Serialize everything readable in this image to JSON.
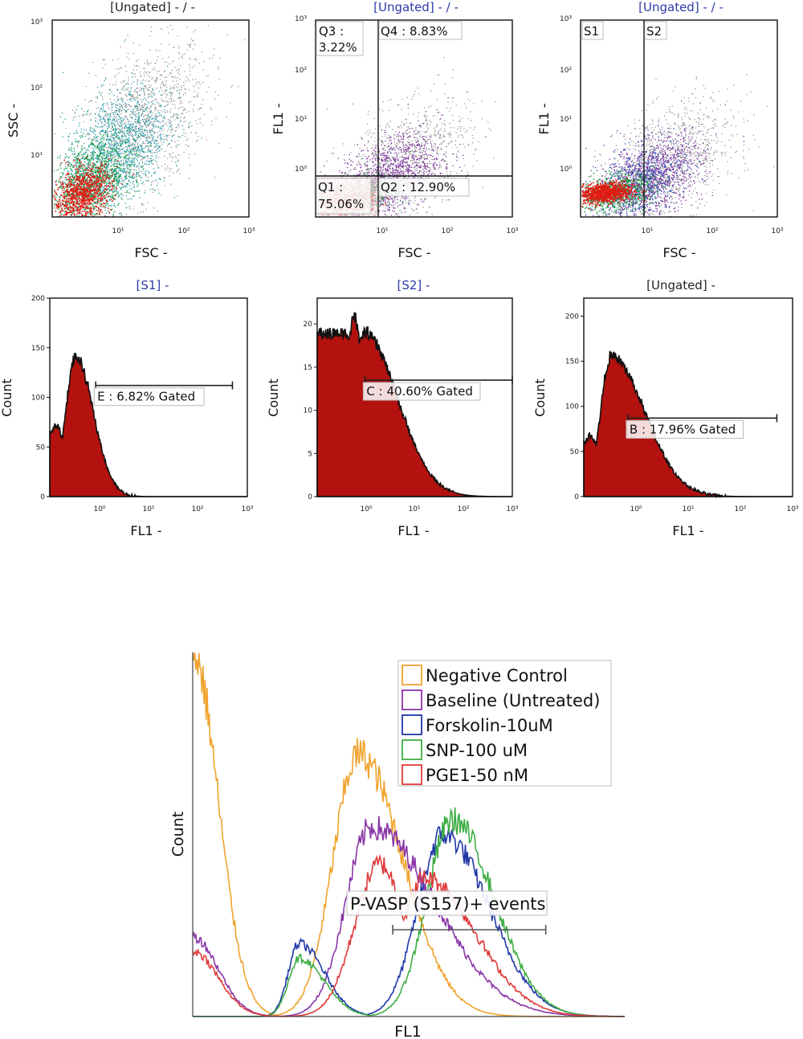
{
  "chart_data": [
    {
      "type": "scatter",
      "title": "[Ungated] - / -",
      "xlabel": "FSC -",
      "ylabel": "SSC -",
      "xscale": "log",
      "yscale": "log",
      "xlim": [
        1,
        1000
      ],
      "ylim": [
        1,
        1000
      ],
      "x_ticks": [
        "10¹",
        "10²",
        "10³"
      ],
      "y_ticks": [
        "10³",
        "10²",
        "10¹"
      ],
      "colors": [
        "#e01b12",
        "#1aa04a",
        "#1f9aa8",
        "#888888"
      ],
      "regions": [],
      "gates": []
    },
    {
      "type": "scatter",
      "title": "[Ungated] - / -",
      "xlabel": "FSC -",
      "ylabel": "FL1 -",
      "xscale": "log",
      "yscale": "log",
      "xlim": [
        1,
        1000
      ],
      "ylim": [
        0.1,
        1000
      ],
      "x_ticks": [
        "10¹",
        "10²",
        "10³"
      ],
      "y_ticks": [
        "10³",
        "10²",
        "10¹",
        "10⁰"
      ],
      "colors": [
        "#e01b12",
        "#1aa04a",
        "#7a2a9c",
        "#888888"
      ],
      "regions": [
        {
          "name": "Q1 :",
          "value": "75.06%"
        },
        {
          "name": "Q2 :",
          "value": "12.90%"
        },
        {
          "name": "Q3 :",
          "value": "3.22%"
        },
        {
          "name": "Q4 :",
          "value": "8.83%"
        }
      ],
      "quadrant_x": 8.5,
      "quadrant_y": 0.85
    },
    {
      "type": "scatter",
      "title": "[Ungated] - / -",
      "xlabel": "FSC -",
      "ylabel": "FL1 -",
      "xscale": "log",
      "yscale": "log",
      "xlim": [
        1,
        1000
      ],
      "ylim": [
        0.1,
        1000
      ],
      "x_ticks": [
        "10¹",
        "10²",
        "10³"
      ],
      "y_ticks": [
        "10³",
        "10²",
        "10¹",
        "10⁰"
      ],
      "colors": [
        "#e01b12",
        "#1aa04a",
        "#7a2a9c",
        "#2540b0",
        "#888888"
      ],
      "regions": [
        {
          "name": "S1",
          "value": ""
        },
        {
          "name": "S2",
          "value": ""
        }
      ],
      "split_x": 9.5
    },
    {
      "type": "area",
      "title": "[S1] -",
      "xlabel": "FL1 -",
      "ylabel": "Count",
      "xscale": "log",
      "xlim": [
        0.1,
        1000
      ],
      "ylim": [
        0,
        200
      ],
      "y_ticks": [
        0,
        50,
        100,
        150,
        200
      ],
      "x_ticks": [
        "10⁰",
        "10¹",
        "10²",
        "10³"
      ],
      "fill_color": "#b3120f",
      "peaks": [
        {
          "x": 0.13,
          "y": 72
        },
        {
          "x": 0.33,
          "y": 140
        }
      ],
      "tail_end": 2.5,
      "gate": {
        "label": "E : 6.82% Gated",
        "from": 0.85,
        "to": 500,
        "y": 112
      }
    },
    {
      "type": "area",
      "title": "[S2] -",
      "xlabel": "FL1 -",
      "ylabel": "Count",
      "xscale": "log",
      "xlim": [
        0.1,
        1000
      ],
      "ylim": [
        0,
        23
      ],
      "y_ticks": [
        0,
        5,
        10,
        15,
        20
      ],
      "x_ticks": [
        "10⁰",
        "10¹",
        "10²",
        "10³"
      ],
      "fill_color": "#b3120f",
      "peaks": [
        {
          "x": 0.55,
          "y": 21
        },
        {
          "x": 0.9,
          "y": 19
        }
      ],
      "tail_end": 40,
      "gate": {
        "label": "C : 40.60% Gated",
        "from": 0.95,
        "to": 1000,
        "y": 13.5
      }
    },
    {
      "type": "area",
      "title": "[Ungated] -",
      "xlabel": "FL1 -",
      "ylabel": "Count",
      "xscale": "log",
      "xlim": [
        0.1,
        1000
      ],
      "ylim": [
        0,
        220
      ],
      "y_ticks": [
        0,
        50,
        100,
        150,
        200
      ],
      "x_ticks": [
        "10⁰",
        "10¹",
        "10²",
        "10³"
      ],
      "fill_color": "#b3120f",
      "peaks": [
        {
          "x": 0.13,
          "y": 68
        },
        {
          "x": 0.33,
          "y": 155
        }
      ],
      "tail_end": 12,
      "gate": {
        "label": "B : 17.96% Gated",
        "from": 0.7,
        "to": 500,
        "y": 87
      }
    },
    {
      "type": "line",
      "title": "",
      "xlabel": "FL1",
      "ylabel": "Count",
      "xscale": "log",
      "x_ticks": [],
      "y_ticks": [],
      "legend_position": "top-right",
      "series": [
        {
          "name": "Negative Control",
          "color": "#f0a32c",
          "peaks": [
            {
              "x": 0.001,
              "y": 100
            },
            {
              "x": 0.2,
              "y": 72
            }
          ],
          "tail_end": 6
        },
        {
          "name": "Baseline (Untreated)",
          "color": "#8a36a8",
          "peaks": [
            {
              "x": 0.001,
              "y": 22
            },
            {
              "x": 0.3,
              "y": 52
            }
          ],
          "tail_end": 40
        },
        {
          "name": "Forskolin-10uM",
          "color": "#2137a8",
          "peaks": [
            {
              "x": 0.03,
              "y": 20
            },
            {
              "x": 3.0,
              "y": 50
            }
          ],
          "tail_end": 100
        },
        {
          "name": "SNP-100 uM",
          "color": "#3fae45",
          "peaks": [
            {
              "x": 0.03,
              "y": 16
            },
            {
              "x": 4.0,
              "y": 54
            }
          ],
          "tail_end": 100
        },
        {
          "name": "PGE1-50 nM",
          "color": "#e03a3a",
          "peaks": [
            {
              "x": 0.001,
              "y": 18
            },
            {
              "x": 0.4,
              "y": 42
            },
            {
              "x": 1.7,
              "y": 38
            }
          ],
          "tail_end": 80
        }
      ],
      "gate": {
        "label": "P-VASP (S157)+ events",
        "from": 0.6,
        "to": 80
      }
    }
  ]
}
